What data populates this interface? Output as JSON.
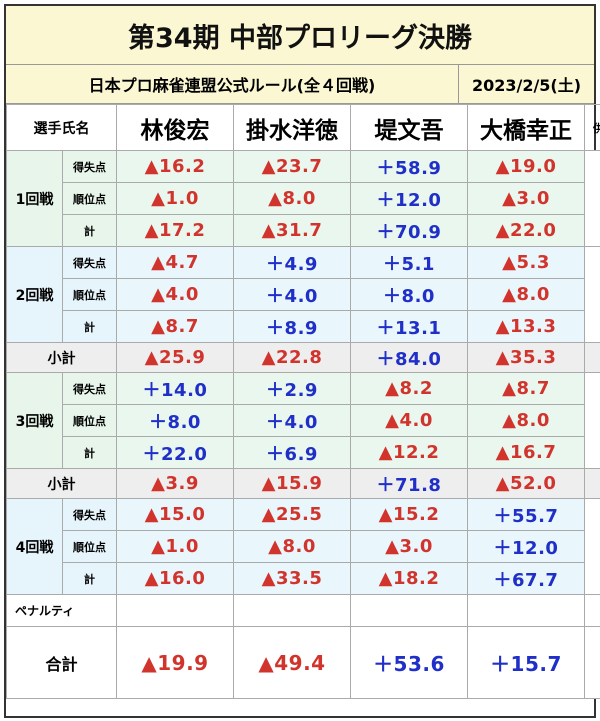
{
  "title": "第34期 中部プロリーグ決勝",
  "rules": "日本プロ麻雀連盟公式ルール(全４回戦)",
  "date": "2023/2/5(土)",
  "header": {
    "seat_label": "選手氏名",
    "players": [
      "林俊宏",
      "掛水洋徳",
      "堤文吾",
      "大橋幸正"
    ],
    "witness": "供託"
  },
  "row_labels": {
    "score": "得失点",
    "rank": "順位点",
    "total": "計"
  },
  "rounds": [
    {
      "label": "1回戦",
      "score": [
        "▲16.2",
        "▲23.7",
        "＋58.9",
        "▲19.0"
      ],
      "rank": [
        "▲1.0",
        "▲8.0",
        "＋12.0",
        "▲3.0"
      ],
      "total": [
        "▲17.2",
        "▲31.7",
        "＋70.9",
        "▲22.0"
      ]
    },
    {
      "label": "2回戦",
      "score": [
        "▲4.7",
        "＋4.9",
        "＋5.1",
        "▲5.3"
      ],
      "rank": [
        "▲4.0",
        "＋4.0",
        "＋8.0",
        "▲8.0"
      ],
      "total": [
        "▲8.7",
        "＋8.9",
        "＋13.1",
        "▲13.3"
      ],
      "subtotal": [
        "▲25.9",
        "▲22.8",
        "＋84.0",
        "▲35.3"
      ]
    },
    {
      "label": "3回戦",
      "score": [
        "＋14.0",
        "＋2.9",
        "▲8.2",
        "▲8.7"
      ],
      "rank": [
        "＋8.0",
        "＋4.0",
        "▲4.0",
        "▲8.0"
      ],
      "total": [
        "＋22.0",
        "＋6.9",
        "▲12.2",
        "▲16.7"
      ],
      "subtotal": [
        "▲3.9",
        "▲15.9",
        "＋71.8",
        "▲52.0"
      ]
    },
    {
      "label": "4回戦",
      "score": [
        "▲15.0",
        "▲25.5",
        "▲15.2",
        "＋55.7"
      ],
      "rank": [
        "▲1.0",
        "▲8.0",
        "▲3.0",
        "＋12.0"
      ],
      "total": [
        "▲16.0",
        "▲33.5",
        "▲18.2",
        "＋67.7"
      ]
    }
  ],
  "subtotal_label": "小計",
  "penalty_label": "ペナルティ",
  "grand_total": {
    "label": "合計",
    "values": [
      "▲19.9",
      "▲49.4",
      "＋53.6",
      "＋15.7"
    ]
  },
  "colors": {
    "negative": "#d0342c",
    "positive": "#1f2fc8",
    "header_bg": "#fbf7d2"
  }
}
